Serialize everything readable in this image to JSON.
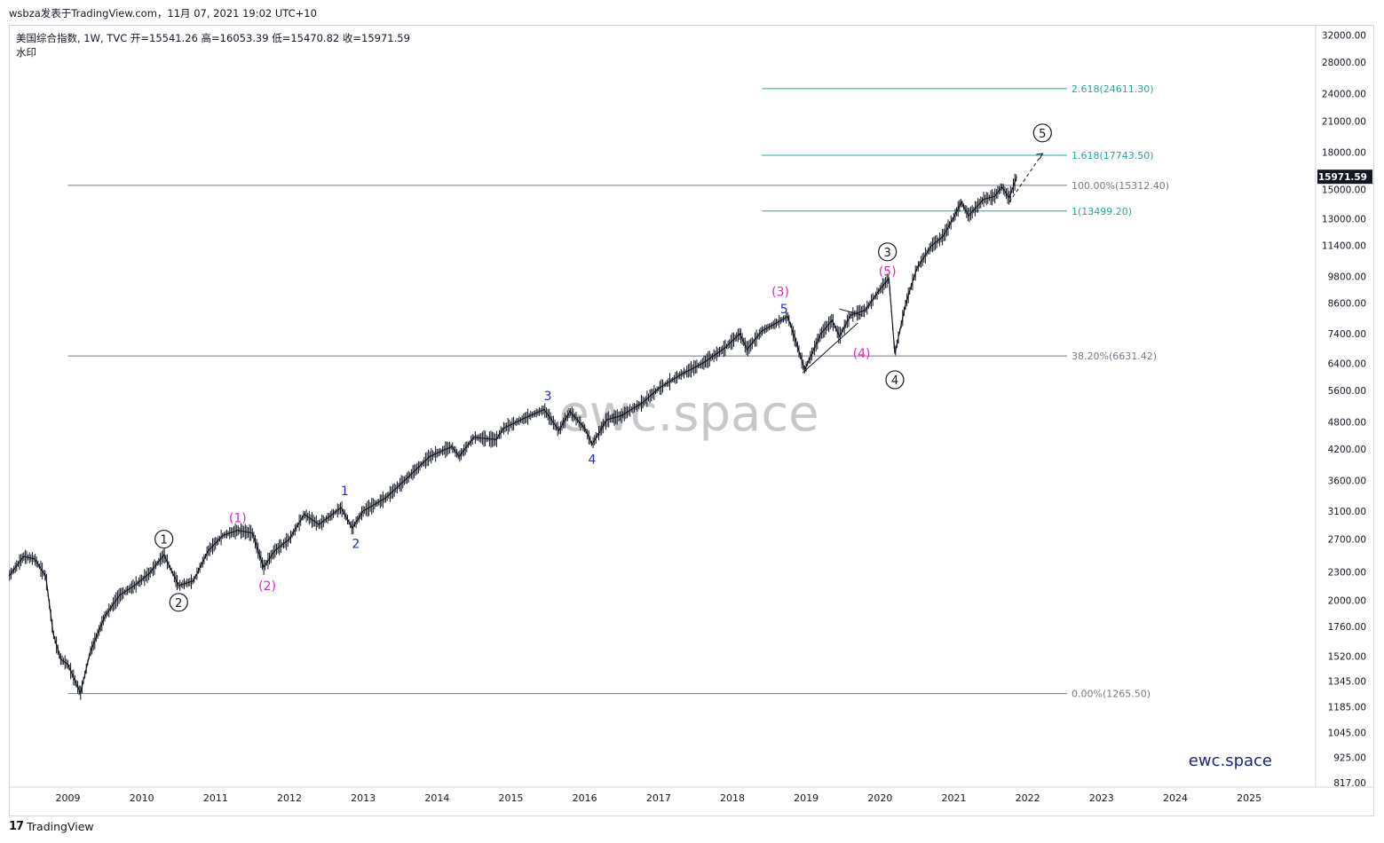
{
  "header": {
    "publisher": "wsbza发表于TradingView.com，11月 07, 2021 19:02 UTC+10"
  },
  "legend": {
    "line1": "美国综合指数, 1W, TVC  开=15541.26  高=16053.39  低=15470.82  收=15971.59",
    "line2": "水印"
  },
  "footer": {
    "brand": "TradingView"
  },
  "chart_data": {
    "type": "line",
    "title": "",
    "xlabel": "",
    "ylabel": "",
    "y_scale": "log",
    "ylim": [
      800,
      33500
    ],
    "xlim": [
      2008.2,
      2025.9
    ],
    "x_ticks": [
      "2009",
      "2010",
      "2011",
      "2012",
      "2013",
      "2014",
      "2015",
      "2016",
      "2017",
      "2018",
      "2019",
      "2020",
      "2021",
      "2022",
      "2023",
      "2024",
      "2025"
    ],
    "y_ticks": [
      {
        "v": 32000,
        "label": "32000.00"
      },
      {
        "v": 28000,
        "label": "28000.00"
      },
      {
        "v": 24000,
        "label": "24000.00"
      },
      {
        "v": 21000,
        "label": "21000.00"
      },
      {
        "v": 18000,
        "label": "18000.00"
      },
      {
        "v": 15000,
        "label": "15000.00"
      },
      {
        "v": 13000,
        "label": "13000.00"
      },
      {
        "v": 11400,
        "label": "11400.00"
      },
      {
        "v": 9800,
        "label": "9800.00"
      },
      {
        "v": 8600,
        "label": "8600.00"
      },
      {
        "v": 7400,
        "label": "7400.00"
      },
      {
        "v": 6400,
        "label": "6400.00"
      },
      {
        "v": 5600,
        "label": "5600.00"
      },
      {
        "v": 4800,
        "label": "4800.00"
      },
      {
        "v": 4200,
        "label": "4200.00"
      },
      {
        "v": 3600,
        "label": "3600.00"
      },
      {
        "v": 3100,
        "label": "3100.00"
      },
      {
        "v": 2700,
        "label": "2700.00"
      },
      {
        "v": 2300,
        "label": "2300.00"
      },
      {
        "v": 2000,
        "label": "2000.00"
      },
      {
        "v": 1760,
        "label": "1760.00"
      },
      {
        "v": 1520,
        "label": "1520.00"
      },
      {
        "v": 1345,
        "label": "1345.00"
      },
      {
        "v": 1185,
        "label": "1185.00"
      },
      {
        "v": 1045,
        "label": "1045.00"
      },
      {
        "v": 925,
        "label": "925.00"
      },
      {
        "v": 817,
        "label": "817.00"
      }
    ],
    "last_price": {
      "value": 15971.59,
      "label": "15971.59"
    },
    "series": [
      {
        "points": [
          [
            2008.2,
            2250
          ],
          [
            2008.4,
            2480
          ],
          [
            2008.55,
            2450
          ],
          [
            2008.7,
            2250
          ],
          [
            2008.8,
            1700
          ],
          [
            2008.9,
            1500
          ],
          [
            2009.0,
            1460
          ],
          [
            2009.17,
            1268
          ],
          [
            2009.3,
            1550
          ],
          [
            2009.5,
            1850
          ],
          [
            2009.7,
            2050
          ],
          [
            2009.9,
            2150
          ],
          [
            2010.1,
            2280
          ],
          [
            2010.3,
            2500
          ],
          [
            2010.5,
            2150
          ],
          [
            2010.7,
            2200
          ],
          [
            2010.9,
            2550
          ],
          [
            2011.1,
            2750
          ],
          [
            2011.3,
            2820
          ],
          [
            2011.5,
            2780
          ],
          [
            2011.65,
            2350
          ],
          [
            2011.8,
            2550
          ],
          [
            2012.0,
            2700
          ],
          [
            2012.2,
            3050
          ],
          [
            2012.4,
            2900
          ],
          [
            2012.7,
            3150
          ],
          [
            2012.85,
            2850
          ],
          [
            2013.0,
            3100
          ],
          [
            2013.3,
            3300
          ],
          [
            2013.6,
            3650
          ],
          [
            2013.9,
            4050
          ],
          [
            2014.2,
            4250
          ],
          [
            2014.3,
            4050
          ],
          [
            2014.5,
            4450
          ],
          [
            2014.8,
            4400
          ],
          [
            2014.9,
            4650
          ],
          [
            2015.2,
            4900
          ],
          [
            2015.45,
            5100
          ],
          [
            2015.65,
            4600
          ],
          [
            2015.8,
            5050
          ],
          [
            2016.0,
            4650
          ],
          [
            2016.1,
            4300
          ],
          [
            2016.3,
            4850
          ],
          [
            2016.5,
            4950
          ],
          [
            2016.8,
            5300
          ],
          [
            2017.0,
            5650
          ],
          [
            2017.3,
            6050
          ],
          [
            2017.6,
            6400
          ],
          [
            2017.9,
            6900
          ],
          [
            2018.1,
            7400
          ],
          [
            2018.2,
            6850
          ],
          [
            2018.4,
            7500
          ],
          [
            2018.6,
            7800
          ],
          [
            2018.75,
            8050
          ],
          [
            2018.85,
            7200
          ],
          [
            2018.98,
            6200
          ],
          [
            2019.2,
            7400
          ],
          [
            2019.35,
            7900
          ],
          [
            2019.45,
            7300
          ],
          [
            2019.6,
            8100
          ],
          [
            2019.8,
            8300
          ],
          [
            2020.0,
            9200
          ],
          [
            2020.12,
            9700
          ],
          [
            2020.2,
            6700
          ],
          [
            2020.35,
            8600
          ],
          [
            2020.5,
            10200
          ],
          [
            2020.7,
            11400
          ],
          [
            2020.85,
            11900
          ],
          [
            2021.0,
            13100
          ],
          [
            2021.1,
            14100
          ],
          [
            2021.2,
            13200
          ],
          [
            2021.4,
            14300
          ],
          [
            2021.55,
            14500
          ],
          [
            2021.65,
            15200
          ],
          [
            2021.75,
            14400
          ],
          [
            2021.85,
            15970
          ]
        ]
      }
    ],
    "fib_levels": [
      {
        "label": "2.618(24611.30)",
        "value": 24611.3
      },
      {
        "label": "1.618(17743.50)",
        "value": 17743.5
      },
      {
        "label": "100.00%(15312.40)",
        "value": 15312.4
      },
      {
        "label": "1(13499.20)",
        "value": 13499.2
      },
      {
        "label": "38.20%(6631.42)",
        "value": 6631.42
      },
      {
        "label": "0.00%(1265.50)",
        "value": 1265.5
      }
    ],
    "wave_labels": [
      {
        "text": "1",
        "circled": true,
        "color": "#131722",
        "x": 2010.3,
        "y": 2700
      },
      {
        "text": "2",
        "circled": true,
        "color": "#131722",
        "x": 2010.5,
        "y": 1980
      },
      {
        "text": "(1)",
        "color": "#e91ed0",
        "x": 2011.3,
        "y": 3000
      },
      {
        "text": "(2)",
        "color": "#e91ed0",
        "x": 2011.7,
        "y": 2150
      },
      {
        "text": "1",
        "color": "#1f2ad6",
        "x": 2012.75,
        "y": 3420
      },
      {
        "text": "2",
        "color": "#1f2ad6",
        "x": 2012.9,
        "y": 2640
      },
      {
        "text": "3",
        "color": "#1f2ad6",
        "x": 2015.5,
        "y": 5450
      },
      {
        "text": "4",
        "color": "#1f2ad6",
        "x": 2016.1,
        "y": 4000
      },
      {
        "text": "(3)",
        "color": "#e91ed0",
        "x": 2018.65,
        "y": 9100
      },
      {
        "text": "5",
        "color": "#1f2ad6",
        "x": 2018.7,
        "y": 8350
      },
      {
        "text": "(4)",
        "color": "#e91ed0",
        "x": 2019.75,
        "y": 6720
      },
      {
        "text": "3",
        "circled": true,
        "color": "#131722",
        "x": 2020.1,
        "y": 11050
      },
      {
        "text": "(5)",
        "color": "#e91ed0",
        "x": 2020.1,
        "y": 10050
      },
      {
        "text": "4",
        "circled": true,
        "color": "#131722",
        "x": 2020.2,
        "y": 5900
      },
      {
        "text": "5",
        "circled": true,
        "color": "#131722",
        "x": 2022.2,
        "y": 19800
      }
    ],
    "annotations": [
      {
        "type": "trendline",
        "points": [
          [
            2018.95,
            6100
          ],
          [
            2019.7,
            7800
          ]
        ]
      },
      {
        "type": "trendline",
        "points": [
          [
            2019.45,
            8350
          ],
          [
            2019.75,
            8100
          ]
        ]
      },
      {
        "type": "projection",
        "points": [
          [
            2021.75,
            14100
          ],
          [
            2022.2,
            17900
          ]
        ]
      }
    ],
    "watermark": "ewc.space",
    "brand_text": "ewc.space"
  }
}
